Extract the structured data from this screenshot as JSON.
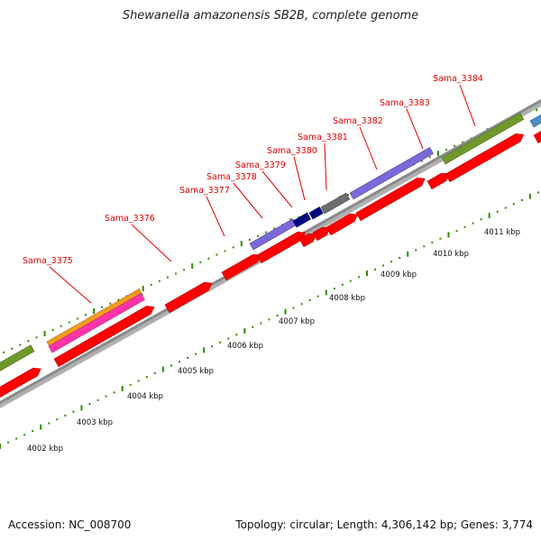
{
  "title": "Shewanella amazonensis SB2B, complete genome",
  "footer": {
    "accession": "Accession: NC_008700",
    "summary": "Topology: circular; Length: 4,306,142 bp; Genes: 3,774"
  },
  "gene_labels": [
    "Sama_3375",
    "Sama_3376",
    "Sama_3377",
    "Sama_3378",
    "Sama_3379",
    "Sama_3380",
    "Sama_3381",
    "Sama_3382",
    "Sama_3383",
    "Sama_3384"
  ],
  "kbp_labels": [
    "4002 kbp",
    "4003 kbp",
    "4004 kbp",
    "4005 kbp",
    "4006 kbp",
    "4007 kbp",
    "4008 kbp",
    "4009 kbp",
    "4010 kbp",
    "4011 kbp"
  ],
  "colors": {
    "cds": "#ff0000",
    "backbone": "#8a8a8a",
    "tick_dot": "#2e8b00",
    "label_red": "#e00000",
    "cog_olive": "#6f9a2a",
    "cog_orange": "#f39a1e",
    "cog_magenta": "#ff33aa",
    "cog_purple": "#7b68d9",
    "cog_navy": "#000a80",
    "cog_gray": "#6e6e6e",
    "cog_steelblue": "#4a8fc8"
  }
}
